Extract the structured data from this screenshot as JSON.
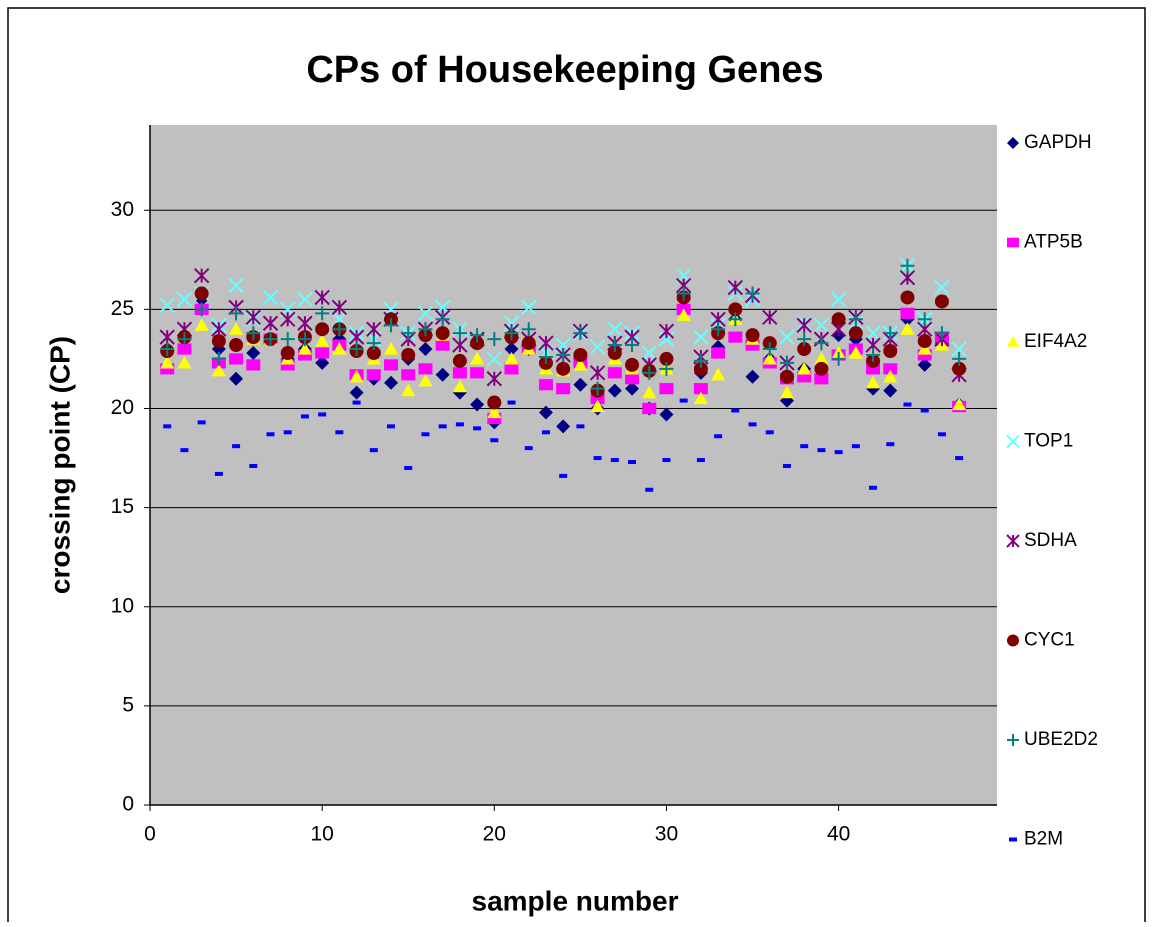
{
  "chart_data": {
    "type": "scatter",
    "title": "CPs  of  Housekeeping Genes",
    "xlabel": "sample number",
    "ylabel": "crossing point (CP)",
    "x": [
      1,
      2,
      3,
      4,
      5,
      6,
      7,
      8,
      9,
      10,
      11,
      12,
      13,
      14,
      15,
      16,
      17,
      18,
      19,
      20,
      21,
      22,
      23,
      24,
      25,
      26,
      27,
      28,
      29,
      30,
      31,
      32,
      33,
      34,
      35,
      36,
      37,
      38,
      39,
      40,
      41,
      42,
      43,
      44,
      45,
      46,
      47
    ],
    "xlim": [
      0,
      49.2
    ],
    "xticks": [
      0,
      10,
      20,
      30,
      40
    ],
    "ylim": [
      0,
      34.3
    ],
    "yticks": [
      0,
      5,
      10,
      15,
      20,
      25,
      30
    ],
    "grid": true,
    "legend": "right",
    "series": [
      {
        "name": "GAPDH",
        "color": "#000080",
        "marker": "diamond",
        "values": [
          23.0,
          23.5,
          25.5,
          23.0,
          21.5,
          22.8,
          23.5,
          22.5,
          23.0,
          22.3,
          23.5,
          20.8,
          21.5,
          21.3,
          22.5,
          23.0,
          21.7,
          20.8,
          20.2,
          19.3,
          23.0,
          23.0,
          19.8,
          19.1,
          21.2,
          20.0,
          20.9,
          21.0,
          20.0,
          19.7,
          25.5,
          21.8,
          23.1,
          24.5,
          21.6,
          22.5,
          20.4,
          22.0,
          21.7,
          23.7,
          23.5,
          21.0,
          20.9,
          24.5,
          22.2,
          23.3,
          20.2
        ]
      },
      {
        "name": "ATP5B",
        "color": "#ff00ff",
        "marker": "square",
        "values": [
          22.0,
          23.0,
          25.0,
          22.3,
          22.5,
          22.2,
          23.5,
          22.2,
          22.7,
          22.8,
          23.2,
          21.7,
          21.7,
          22.2,
          21.7,
          22.0,
          23.2,
          21.8,
          21.8,
          19.5,
          22.0,
          23.0,
          21.2,
          21.0,
          22.3,
          20.5,
          21.8,
          21.5,
          20.0,
          21.0,
          25.0,
          21.0,
          22.8,
          23.6,
          23.2,
          22.3,
          21.5,
          21.6,
          21.5,
          22.7,
          23.0,
          22.0,
          22.0,
          24.8,
          22.7,
          23.6,
          20.1
        ]
      },
      {
        "name": "EIF4A2",
        "color": "#ffff00",
        "marker": "triangle",
        "values": [
          22.3,
          22.3,
          24.2,
          21.9,
          24.0,
          23.5,
          23.5,
          22.5,
          23.0,
          23.4,
          23.0,
          21.6,
          22.5,
          23.0,
          20.9,
          21.4,
          23.7,
          21.1,
          22.5,
          19.8,
          22.5,
          23.0,
          22.0,
          21.9,
          22.2,
          20.1,
          22.5,
          22.0,
          20.8,
          22.0,
          24.7,
          20.5,
          21.7,
          24.5,
          23.5,
          22.5,
          20.8,
          22.0,
          22.5,
          22.8,
          22.8,
          21.3,
          21.6,
          24.0,
          23.0,
          23.2,
          20.2
        ]
      },
      {
        "name": "TOP1",
        "color": "#66ffff",
        "marker": "x",
        "values": [
          25.2,
          25.5,
          25.8,
          24.2,
          26.2,
          24.5,
          25.6,
          25.0,
          25.5,
          25.6,
          24.5,
          23.8,
          23.5,
          25.0,
          23.8,
          24.8,
          25.1,
          24.0,
          23.5,
          22.5,
          24.3,
          25.1,
          22.8,
          23.2,
          23.8,
          23.1,
          24.0,
          23.8,
          22.8,
          23.5,
          26.7,
          23.6,
          24.2,
          25.8,
          25.5,
          24.6,
          23.6,
          24.3,
          24.2,
          25.5,
          24.3,
          23.8,
          23.8,
          27.2,
          24.5,
          26.1,
          23.0
        ]
      },
      {
        "name": "SDHA",
        "color": "#800080",
        "marker": "star",
        "values": [
          23.6,
          24.0,
          26.7,
          24.0,
          25.1,
          24.6,
          24.3,
          24.5,
          24.3,
          25.6,
          25.1,
          23.6,
          24.0,
          24.5,
          23.5,
          24.0,
          24.6,
          23.2,
          23.5,
          21.5,
          23.9,
          23.5,
          23.3,
          22.7,
          23.9,
          21.8,
          23.3,
          23.6,
          22.2,
          23.9,
          26.2,
          22.6,
          24.5,
          26.1,
          25.7,
          24.6,
          22.3,
          24.2,
          23.5,
          24.0,
          24.6,
          23.2,
          23.5,
          26.6,
          24.0,
          23.5,
          21.7
        ]
      },
      {
        "name": "CYC1",
        "color": "#800000",
        "marker": "circle",
        "values": [
          22.9,
          23.6,
          25.8,
          23.4,
          23.2,
          23.6,
          23.5,
          22.8,
          23.6,
          24.0,
          24.0,
          22.9,
          22.8,
          24.5,
          22.7,
          23.7,
          23.8,
          22.4,
          23.3,
          20.3,
          23.6,
          23.3,
          22.3,
          22.0,
          22.7,
          20.9,
          22.8,
          22.2,
          21.9,
          22.5,
          25.6,
          22.0,
          23.8,
          25.0,
          23.7,
          23.3,
          21.6,
          23.0,
          22.0,
          24.5,
          23.8,
          22.4,
          22.9,
          25.6,
          23.4,
          25.4,
          22.0
        ]
      },
      {
        "name": "UBE2D2",
        "color": "#008080",
        "marker": "plus",
        "values": [
          23.0,
          23.5,
          25.0,
          22.5,
          24.8,
          23.8,
          23.5,
          23.5,
          23.5,
          24.8,
          24.0,
          23.0,
          23.3,
          24.2,
          23.8,
          24.0,
          24.5,
          23.8,
          23.7,
          23.5,
          23.8,
          24.0,
          22.6,
          22.7,
          23.8,
          21.0,
          23.2,
          23.2,
          21.8,
          22.0,
          25.8,
          22.4,
          24.0,
          24.5,
          25.8,
          23.0,
          22.3,
          23.5,
          23.3,
          22.5,
          24.5,
          22.7,
          23.8,
          27.2,
          24.5,
          23.8,
          22.5
        ]
      },
      {
        "name": "B2M",
        "color": "#0000ff",
        "marker": "dash",
        "values": [
          19.1,
          17.9,
          19.3,
          16.7,
          18.1,
          17.1,
          18.7,
          18.8,
          19.6,
          19.7,
          18.8,
          20.3,
          17.9,
          19.1,
          17.0,
          18.7,
          19.1,
          19.2,
          19.0,
          18.4,
          20.3,
          18.0,
          18.8,
          16.6,
          19.1,
          17.5,
          17.4,
          17.3,
          15.9,
          17.4,
          20.4,
          17.4,
          18.6,
          19.9,
          19.2,
          18.8,
          17.1,
          18.1,
          17.9,
          17.8,
          18.1,
          16.0,
          18.2,
          20.2,
          19.9,
          18.7,
          17.5
        ]
      }
    ]
  }
}
